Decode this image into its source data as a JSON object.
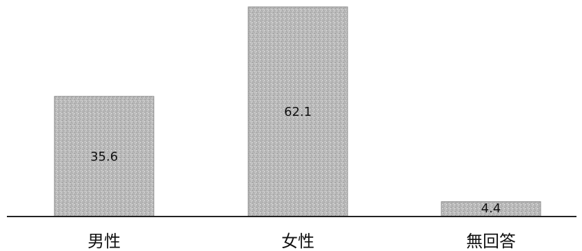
{
  "chart_data": {
    "type": "bar",
    "categories": [
      "男性",
      "女性",
      "無回答"
    ],
    "values": [
      35.6,
      62.1,
      4.4
    ],
    "data_labels": [
      "35.6",
      "62.1",
      "4.4"
    ],
    "title": "",
    "xlabel": "",
    "ylabel": "",
    "ylim": [
      0,
      70
    ],
    "grid": false,
    "legend": "none",
    "bar_color": "#b4b4b4",
    "bar_edge_color": "#8a8a8a",
    "axis_color": "#222222"
  }
}
